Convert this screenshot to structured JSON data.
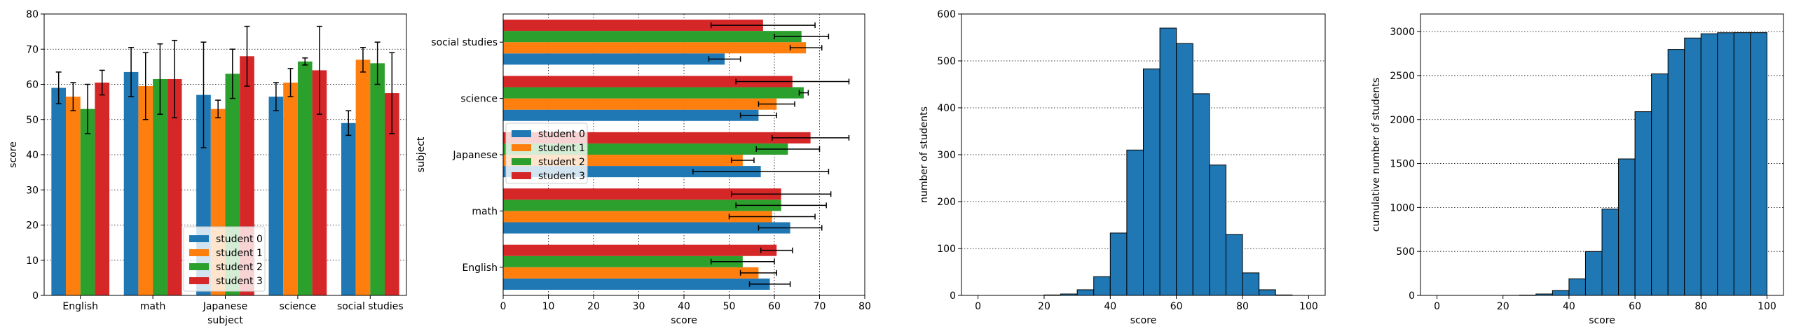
{
  "palette": {
    "student 0": "#1f77b4",
    "student 1": "#ff7f0e",
    "student 2": "#2ca02c",
    "student 3": "#d62728"
  },
  "chart_data": [
    {
      "type": "bar",
      "orientation": "vertical",
      "xlabel": "subject",
      "ylabel": "score",
      "categories": [
        "English",
        "math",
        "Japanese",
        "science",
        "social studies"
      ],
      "ylim": [
        0,
        80
      ],
      "yticks": [
        0,
        10,
        20,
        30,
        40,
        50,
        60,
        70,
        80
      ],
      "grid": "y-dotted",
      "legend": "lower-center",
      "series": [
        {
          "name": "student 0",
          "values": [
            59,
            63.5,
            57,
            56.5,
            49
          ],
          "errors": [
            4.5,
            7,
            15,
            4,
            3.5
          ]
        },
        {
          "name": "student 1",
          "values": [
            56.5,
            59.5,
            53,
            60.5,
            67
          ],
          "errors": [
            4,
            9.5,
            2.5,
            4,
            3.5
          ]
        },
        {
          "name": "student 2",
          "values": [
            53,
            61.5,
            63,
            66.5,
            66
          ],
          "errors": [
            7,
            10,
            7,
            1,
            6
          ]
        },
        {
          "name": "student 3",
          "values": [
            60.5,
            61.5,
            68,
            64,
            57.5
          ],
          "errors": [
            3.5,
            11,
            8.5,
            12.5,
            11.5
          ]
        }
      ]
    },
    {
      "type": "bar",
      "orientation": "horizontal",
      "xlabel": "score",
      "ylabel": "subject",
      "categories": [
        "English",
        "math",
        "Japanese",
        "science",
        "social studies"
      ],
      "xlim": [
        0,
        80
      ],
      "xticks": [
        0,
        10,
        20,
        30,
        40,
        50,
        60,
        70,
        80
      ],
      "grid": "x-dotted",
      "legend": "center-left",
      "series": [
        {
          "name": "student 0",
          "values": [
            59,
            63.5,
            57,
            56.5,
            49
          ],
          "errors": [
            4.5,
            7,
            15,
            4,
            3.5
          ]
        },
        {
          "name": "student 1",
          "values": [
            56.5,
            59.5,
            53,
            60.5,
            67
          ],
          "errors": [
            4,
            9.5,
            2.5,
            4,
            3.5
          ]
        },
        {
          "name": "student 2",
          "values": [
            53,
            61.5,
            63,
            66.5,
            66
          ],
          "errors": [
            7,
            10,
            7,
            1,
            6
          ]
        },
        {
          "name": "student 3",
          "values": [
            60.5,
            61.5,
            68,
            64,
            57.5
          ],
          "errors": [
            3.5,
            11,
            8.5,
            12.5,
            11.5
          ]
        }
      ]
    },
    {
      "type": "histogram",
      "xlabel": "score",
      "ylabel": "number of students",
      "bin_edges": [
        0,
        5,
        10,
        15,
        20,
        25,
        30,
        35,
        40,
        45,
        50,
        55,
        60,
        65,
        70,
        75,
        80,
        85,
        90,
        95,
        100
      ],
      "counts": [
        0,
        0,
        0,
        0,
        1,
        3,
        12,
        40,
        133,
        310,
        483,
        570,
        537,
        430,
        278,
        130,
        48,
        12,
        1,
        0
      ],
      "xlim": [
        -5,
        105
      ],
      "ylim": [
        0,
        600
      ],
      "xticks": [
        0,
        20,
        40,
        60,
        80,
        100
      ],
      "yticks": [
        0,
        100,
        200,
        300,
        400,
        500,
        600
      ],
      "grid": "y-dotted"
    },
    {
      "type": "histogram",
      "cumulative": true,
      "xlabel": "score",
      "ylabel": "cumulative number of students",
      "bin_edges": [
        0,
        5,
        10,
        15,
        20,
        25,
        30,
        35,
        40,
        45,
        50,
        55,
        60,
        65,
        70,
        75,
        80,
        85,
        90,
        95,
        100
      ],
      "counts": [
        0,
        0,
        0,
        0,
        1,
        4,
        16,
        56,
        189,
        499,
        982,
        1552,
        2089,
        2519,
        2797,
        2927,
        2975,
        2987,
        2988,
        2988
      ],
      "xlim": [
        -5,
        105
      ],
      "ylim": [
        0,
        3200
      ],
      "xticks": [
        0,
        20,
        40,
        60,
        80,
        100
      ],
      "yticks": [
        0,
        500,
        1000,
        1500,
        2000,
        2500,
        3000
      ],
      "grid": "y-dotted"
    }
  ]
}
